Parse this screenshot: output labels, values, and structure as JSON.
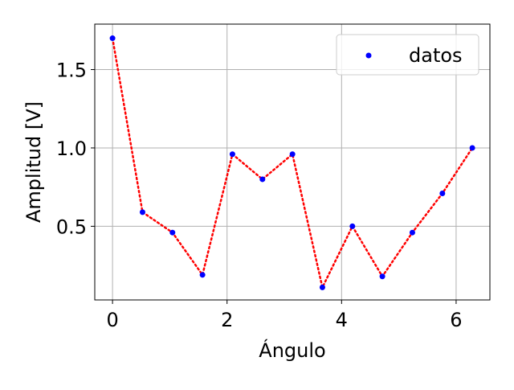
{
  "chart_data": {
    "type": "scatter",
    "title": "",
    "xlabel": "Ángulo",
    "ylabel": "Amplitud [V]",
    "xlim": [
      -0.31,
      6.59
    ],
    "ylim": [
      0.03,
      1.79
    ],
    "xticks": [
      0,
      2,
      4,
      6
    ],
    "xtick_labels": [
      "0",
      "2",
      "4",
      "6"
    ],
    "yticks": [
      0.5,
      1.0,
      1.5
    ],
    "ytick_labels": [
      "0.5",
      "1.0",
      "1.5"
    ],
    "grid": true,
    "legend": {
      "placement": "top-right",
      "entries": [
        "datos"
      ]
    },
    "series": [
      {
        "name": "datos",
        "kind": "scatter",
        "color": "#0000ff",
        "x": [
          0.0,
          0.524,
          1.047,
          1.571,
          2.094,
          2.618,
          3.142,
          3.665,
          4.189,
          4.712,
          5.236,
          5.76,
          6.283
        ],
        "y": [
          1.7,
          0.59,
          0.46,
          0.19,
          0.96,
          0.8,
          0.96,
          0.11,
          0.5,
          0.18,
          0.46,
          0.71,
          1.0
        ]
      },
      {
        "kind": "line",
        "style": "dotted",
        "color": "#ff0000",
        "x": [
          0.0,
          0.524,
          1.047,
          1.571,
          2.094,
          2.618,
          3.142,
          3.665,
          4.189,
          4.712,
          5.236,
          5.76,
          6.283
        ],
        "y": [
          1.7,
          0.59,
          0.46,
          0.19,
          0.96,
          0.8,
          0.96,
          0.11,
          0.5,
          0.18,
          0.46,
          0.71,
          1.0
        ]
      }
    ]
  }
}
